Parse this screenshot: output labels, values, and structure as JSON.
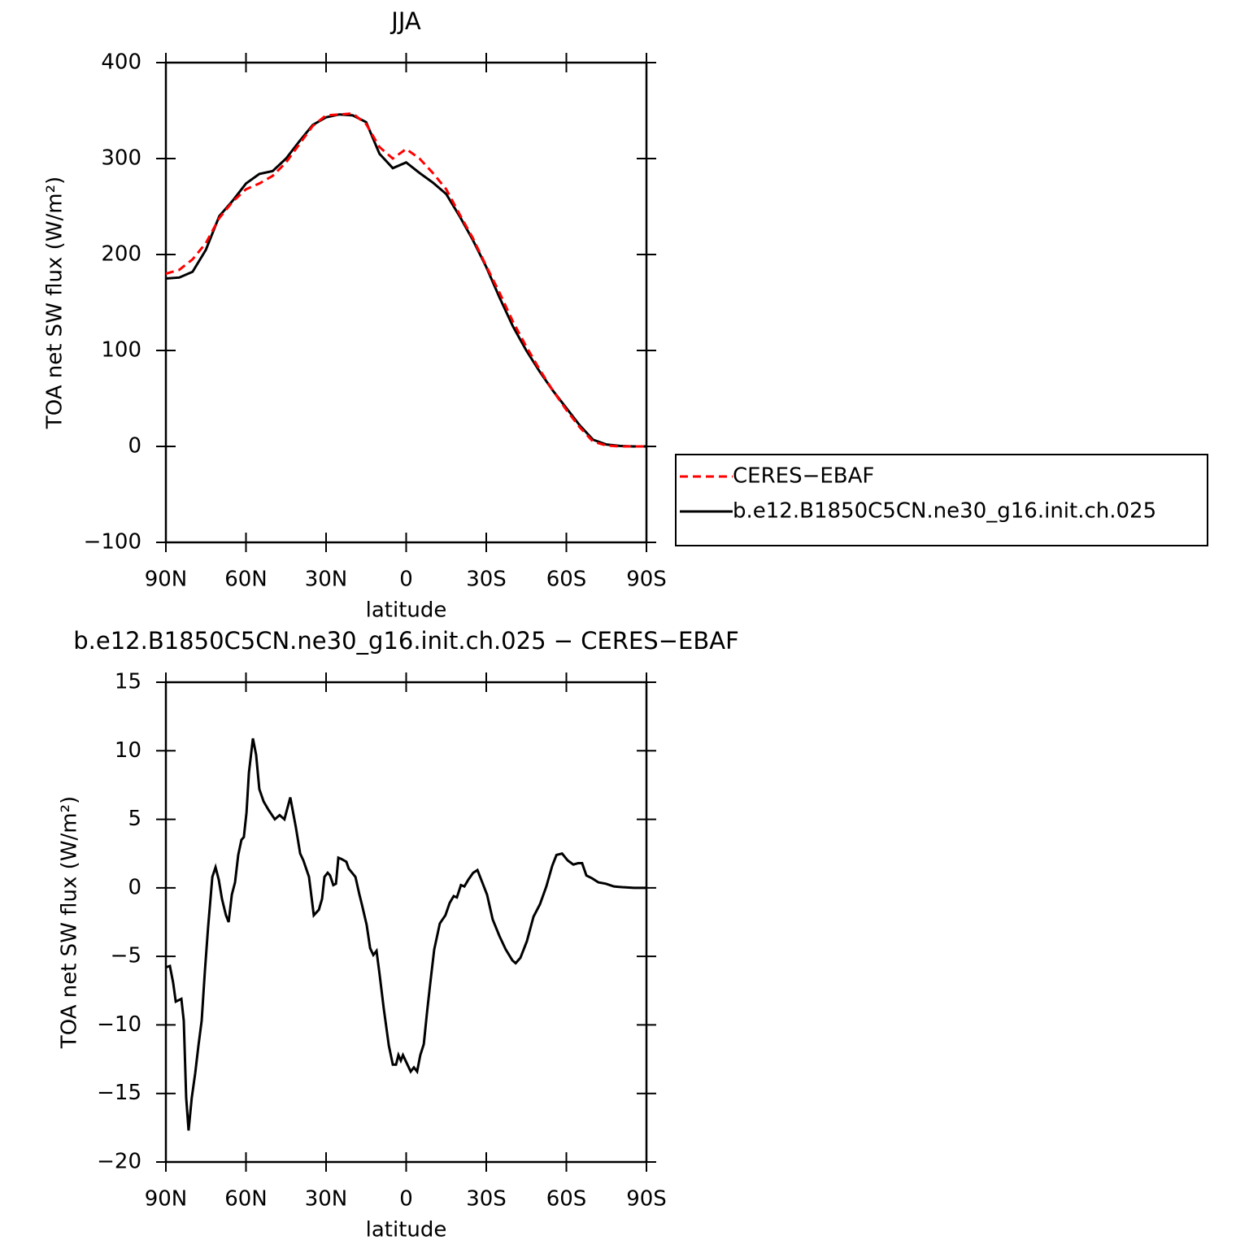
{
  "chart_data": [
    {
      "type": "line",
      "title": "JJA",
      "xlabel": "latitude",
      "ylabel": "TOA net SW flux (W/m²)",
      "x": [
        90,
        85,
        80,
        75,
        70,
        65,
        60,
        55,
        50,
        45,
        40,
        35,
        30,
        25,
        20,
        15,
        10,
        5,
        0,
        -5,
        -10,
        -15,
        -20,
        -25,
        -30,
        -35,
        -40,
        -45,
        -50,
        -55,
        -60,
        -65,
        -70,
        -75,
        -80,
        -85,
        -90
      ],
      "series": [
        {
          "name": "CERES−EBAF",
          "color": "#ff0000",
          "line_style": "dashed",
          "values": [
            180,
            184,
            195,
            212,
            238,
            255,
            268,
            274,
            282,
            296,
            315,
            334,
            345,
            346,
            347,
            336,
            312,
            300,
            310,
            300,
            285,
            268,
            242,
            217,
            188,
            160,
            130,
            104,
            80,
            58,
            38,
            20,
            5,
            1,
            0,
            0,
            0
          ]
        },
        {
          "name": "b.e12.B1850C5CN.ne30_g16.init.ch.025",
          "color": "#000000",
          "line_style": "solid",
          "values": [
            175,
            176,
            182,
            205,
            240,
            256,
            274,
            284,
            287,
            300,
            318,
            335,
            343,
            346,
            345,
            338,
            305,
            290,
            296,
            285,
            275,
            263,
            240,
            215,
            187,
            155,
            125,
            100,
            78,
            58,
            40,
            22,
            7,
            2,
            0.5,
            0,
            0
          ]
        }
      ],
      "xlim": [
        90,
        -90
      ],
      "xticks": [
        {
          "value": 90,
          "label": "90N"
        },
        {
          "value": 60,
          "label": "60N"
        },
        {
          "value": 30,
          "label": "30N"
        },
        0,
        {
          "value": -30,
          "label": "30S"
        },
        {
          "value": -60,
          "label": "60S"
        },
        {
          "value": -90,
          "label": "90S"
        }
      ],
      "ylim": [
        -100,
        400
      ],
      "yticks": [
        {
          "value": -100,
          "label": "−100"
        },
        0,
        100,
        200,
        300,
        400
      ],
      "legend": "right"
    },
    {
      "type": "line",
      "title": "b.e12.B1850C5CN.ne30_g16.init.ch.025 − CERES−EBAF",
      "xlabel": "latitude",
      "ylabel": "TOA net SW flux (W/m²)",
      "x": [
        90,
        88.5,
        87.3,
        86.3,
        84.2,
        83.3,
        82.4,
        81.5,
        80.3,
        79,
        77.8,
        76.6,
        75.4,
        74.2,
        72.6,
        71.4,
        70.2,
        69,
        67.5,
        66.5,
        65.3,
        64.1,
        62.9,
        61.7,
        60.8,
        59.8,
        58.9,
        57.4,
        56.2,
        55,
        53.4,
        51.6,
        49.2,
        47.4,
        45.6,
        43.4,
        41.3,
        39.7,
        38.5,
        36.4,
        34.6,
        32.7,
        31.5,
        30.6,
        29.4,
        28.5,
        27.3,
        26.3,
        25.4,
        24.2,
        22.4,
        21.5,
        19,
        17.5,
        16.6,
        14.8,
        13.5,
        12.3,
        11.1,
        9.9,
        8.4,
        6.5,
        5,
        3.8,
        2.9,
        2,
        1.2,
        0,
        -1.7,
        -2.9,
        -4.1,
        -5.3,
        -6.6,
        -7.8,
        -9,
        -10.5,
        -12.6,
        -14.7,
        -16.3,
        -17.8,
        -19,
        -20.5,
        -21.8,
        -23.3,
        -25.1,
        -26.7,
        -28.5,
        -30.3,
        -32.4,
        -34.9,
        -37.3,
        -39.8,
        -41,
        -42.8,
        -45.2,
        -47.7,
        -50.1,
        -52.5,
        -54.7,
        -56.3,
        -58.4,
        -60.5,
        -62.6,
        -64.4,
        -65.9,
        -67.5,
        -69.6,
        -72,
        -74.8,
        -77.8,
        -80.9,
        -85.4,
        -90
      ],
      "series": [
        {
          "name": null,
          "color": "#000000",
          "line_style": "solid",
          "values": [
            -5.8,
            -5.7,
            -6.9,
            -8.3,
            -8.1,
            -9.7,
            -15.3,
            -17.7,
            -15.3,
            -13.5,
            -11.5,
            -9.7,
            -6.1,
            -2.9,
            0.8,
            1.5,
            0.6,
            -0.8,
            -2.0,
            -2.5,
            -0.5,
            0.4,
            2.4,
            3.5,
            3.7,
            5.5,
            8.4,
            10.9,
            9.7,
            7.2,
            6.3,
            5.7,
            5.0,
            5.3,
            5.0,
            6.6,
            4.4,
            2.5,
            2.0,
            0.8,
            -2.0,
            -1.6,
            -0.8,
            0.8,
            1.1,
            0.9,
            0.2,
            0.3,
            2.2,
            2.1,
            1.9,
            1.4,
            0.8,
            -0.5,
            -1.2,
            -2.7,
            -4.4,
            -4.9,
            -4.6,
            -6.4,
            -8.8,
            -11.5,
            -12.9,
            -12.9,
            -12.2,
            -12.6,
            -12.2,
            -12.7,
            -13.4,
            -13.1,
            -13.4,
            -12.2,
            -11.4,
            -9.1,
            -7.0,
            -4.5,
            -2.6,
            -2.0,
            -1.1,
            -0.6,
            -0.7,
            0.2,
            0.1,
            0.6,
            1.1,
            1.3,
            0.4,
            -0.5,
            -2.3,
            -3.5,
            -4.5,
            -5.3,
            -5.5,
            -5.1,
            -3.9,
            -2.1,
            -1.2,
            0.1,
            1.6,
            2.4,
            2.5,
            2.0,
            1.7,
            1.8,
            1.8,
            0.9,
            0.7,
            0.4,
            0.3,
            0.1,
            0.05,
            0,
            0
          ]
        }
      ],
      "xlim": [
        90,
        -90
      ],
      "xticks": [
        {
          "value": 90,
          "label": "90N"
        },
        {
          "value": 60,
          "label": "60N"
        },
        {
          "value": 30,
          "label": "30N"
        },
        0,
        {
          "value": -30,
          "label": "30S"
        },
        {
          "value": -60,
          "label": "60S"
        },
        {
          "value": -90,
          "label": "90S"
        }
      ],
      "ylim": [
        -20,
        15
      ],
      "yticks": [
        {
          "value": -20,
          "label": "−20"
        },
        {
          "value": -15,
          "label": "−15"
        },
        {
          "value": -10,
          "label": "−10"
        },
        {
          "value": -5,
          "label": "−5"
        },
        0,
        5,
        10,
        15
      ]
    }
  ]
}
